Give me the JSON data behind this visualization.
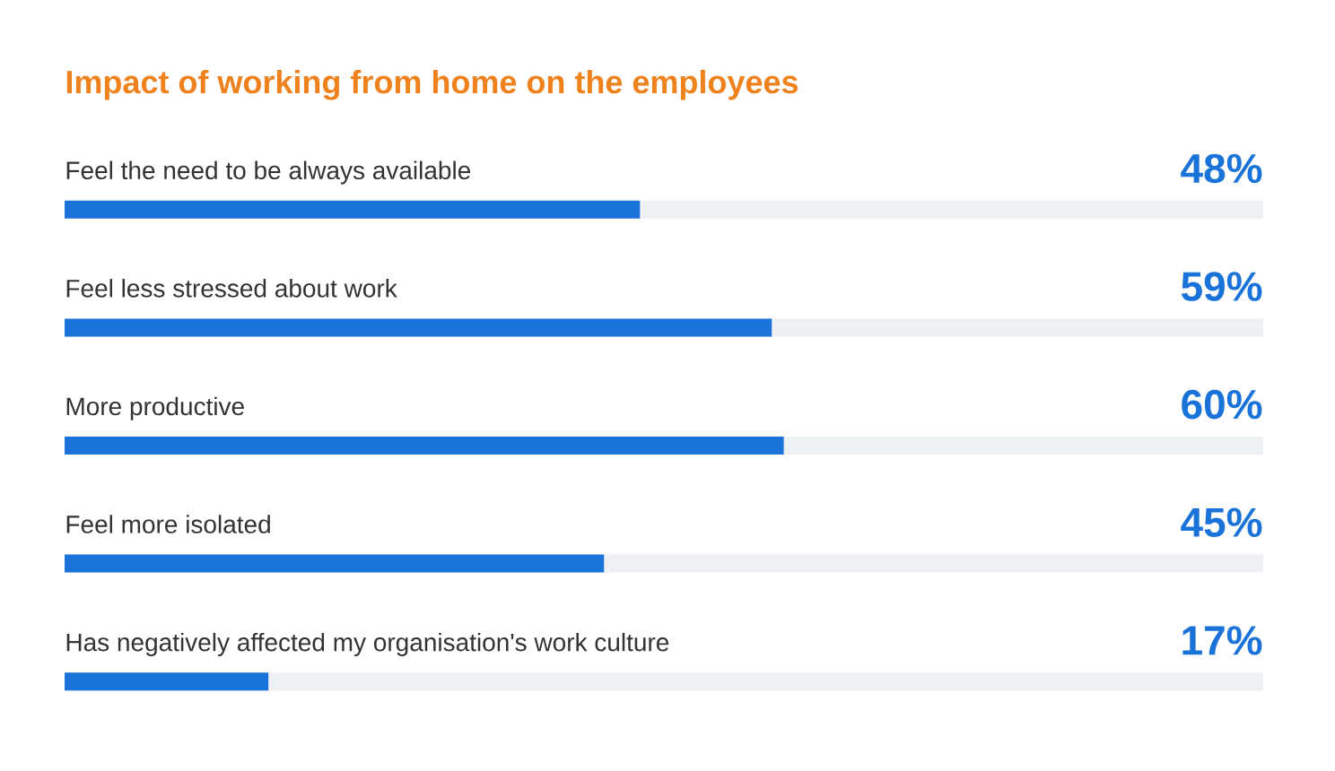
{
  "chart_data": {
    "type": "bar",
    "orientation": "horizontal",
    "title": "Impact of working from home on the employees",
    "categories": [
      "Feel the need to be always available",
      "Feel less stressed about work",
      "More productive",
      "Feel more isolated",
      "Has negatively affected my organisation's work culture"
    ],
    "values": [
      48,
      59,
      60,
      45,
      17
    ],
    "value_labels": [
      "48%",
      "59%",
      "60%",
      "45%",
      "17%"
    ],
    "color": "#1a73d9",
    "xlim": [
      0,
      100
    ]
  }
}
